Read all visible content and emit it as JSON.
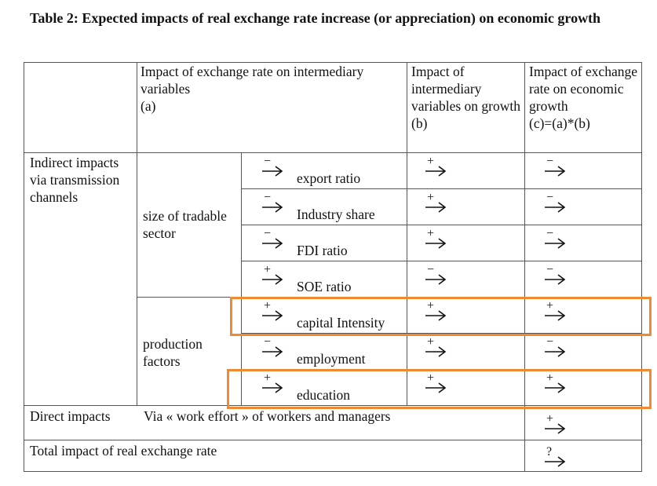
{
  "title": "Table 2: Expected impacts of real exchange rate increase (or appreciation) on economic growth",
  "headers": {
    "a": "Impact of exchange rate on intermediary variables\n(a)",
    "b": "Impact of intermediary variables on growth\n(b)",
    "c": "Impact of exchange rate on economic growth\n(c)=(a)*(b)"
  },
  "row_group_label": "Indirect impacts via transmission channels",
  "sectors": {
    "tradable": "size of tradable sector",
    "production": "production factors"
  },
  "rows": [
    {
      "name": "export ratio",
      "a": "−",
      "b": "+",
      "c": "−"
    },
    {
      "name": "Industry share",
      "a": "−",
      "b": "+",
      "c": "−"
    },
    {
      "name": "FDI ratio",
      "a": "−",
      "b": "+",
      "c": "−"
    },
    {
      "name": "SOE ratio",
      "a": "+",
      "b": "−",
      "c": "−"
    },
    {
      "name": "capital Intensity",
      "a": "+",
      "b": "+",
      "c": "+"
    },
    {
      "name": "employment",
      "a": "−",
      "b": "+",
      "c": "−"
    },
    {
      "name": "education",
      "a": "+",
      "b": "+",
      "c": "+"
    }
  ],
  "direct": {
    "label": "Direct impacts",
    "text": "Via « work effort » of workers and managers",
    "c": "+"
  },
  "total": {
    "label": "Total impact of real exchange rate",
    "c": "?"
  },
  "highlight_color": "#f08a32"
}
